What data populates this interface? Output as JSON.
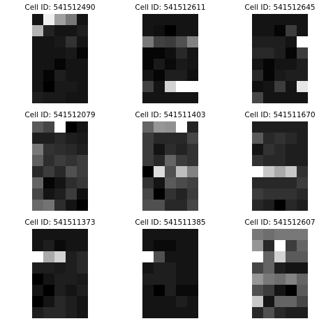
{
  "figure": {
    "background": "#ffffff",
    "colormap": "grayscale (0 = black, 255 = white)"
  },
  "panels": [
    {
      "title": "Cell ID: 541512490",
      "pixels": [
        [
          20,
          240,
          160,
          120,
          20
        ],
        [
          180,
          35,
          20,
          20,
          30
        ],
        [
          20,
          20,
          25,
          50,
          20
        ],
        [
          20,
          20,
          20,
          25,
          5
        ],
        [
          20,
          20,
          5,
          20,
          20
        ],
        [
          20,
          5,
          30,
          20,
          20
        ],
        [
          20,
          0,
          25,
          25,
          20
        ],
        [
          30,
          25,
          25,
          20,
          20
        ]
      ]
    },
    {
      "title": "Cell ID: 541512611",
      "pixels": [
        [
          20,
          20,
          20,
          20,
          20
        ],
        [
          20,
          15,
          0,
          20,
          20
        ],
        [
          120,
          65,
          60,
          80,
          130
        ],
        [
          5,
          5,
          15,
          40,
          20
        ],
        [
          5,
          25,
          10,
          25,
          20
        ],
        [
          20,
          5,
          30,
          30,
          15
        ],
        [
          65,
          20,
          210,
          255,
          255
        ],
        [
          20,
          20,
          20,
          20,
          20
        ]
      ]
    },
    {
      "title": "Cell ID: 541512645",
      "pixels": [
        [
          20,
          20,
          20,
          20,
          20
        ],
        [
          20,
          20,
          5,
          60,
          20
        ],
        [
          30,
          30,
          30,
          20,
          255
        ],
        [
          40,
          40,
          30,
          5,
          60
        ],
        [
          20,
          5,
          20,
          20,
          30
        ],
        [
          40,
          5,
          25,
          30,
          30
        ],
        [
          15,
          20,
          60,
          20,
          230
        ],
        [
          70,
          20,
          20,
          20,
          20
        ]
      ]
    },
    {
      "title": "Cell ID: 541512079",
      "pixels": [
        [
          90,
          70,
          255,
          0,
          20
        ],
        [
          30,
          30,
          40,
          30,
          25
        ],
        [
          120,
          50,
          45,
          40,
          30
        ],
        [
          95,
          45,
          60,
          50,
          60
        ],
        [
          40,
          60,
          40,
          80,
          60
        ],
        [
          100,
          5,
          20,
          45,
          55
        ],
        [
          70,
          20,
          30,
          60,
          15
        ],
        [
          105,
          115,
          45,
          20,
          0
        ]
      ]
    },
    {
      "title": "Cell ID: 541511403",
      "pixels": [
        [
          100,
          150,
          145,
          255,
          35
        ],
        [
          60,
          40,
          40,
          40,
          70
        ],
        [
          60,
          20,
          45,
          35,
          50
        ],
        [
          60,
          40,
          100,
          60,
          50
        ],
        [
          0,
          220,
          80,
          190,
          130
        ],
        [
          50,
          20,
          90,
          75,
          65
        ],
        [
          70,
          0,
          50,
          35,
          60
        ],
        [
          80,
          80,
          40,
          40,
          70
        ]
      ]
    },
    {
      "title": "Cell ID: 541511670",
      "pixels": [
        [
          30,
          30,
          30,
          30,
          30
        ],
        [
          90,
          40,
          50,
          40,
          30
        ],
        [
          20,
          50,
          40,
          30,
          30
        ],
        [
          50,
          40,
          40,
          30,
          30
        ],
        [
          255,
          200,
          170,
          200,
          50
        ],
        [
          40,
          40,
          40,
          40,
          60
        ],
        [
          60,
          50,
          50,
          50,
          40
        ],
        [
          40,
          30,
          0,
          40,
          30
        ]
      ]
    },
    {
      "title": "Cell ID: 541511373",
      "pixels": [
        [
          20,
          20,
          20,
          20,
          20
        ],
        [
          20,
          30,
          10,
          20,
          20
        ],
        [
          255,
          170,
          210,
          30,
          40
        ],
        [
          30,
          30,
          25,
          30,
          40
        ],
        [
          0,
          20,
          30,
          30,
          25
        ],
        [
          20,
          0,
          30,
          20,
          30
        ],
        [
          0,
          20,
          40,
          30,
          20
        ],
        [
          30,
          40,
          40,
          30,
          20
        ]
      ]
    },
    {
      "title": "Cell ID: 541511385",
      "pixels": [
        [
          20,
          20,
          20,
          20,
          20
        ],
        [
          20,
          10,
          10,
          20,
          20
        ],
        [
          255,
          80,
          20,
          20,
          20
        ],
        [
          20,
          30,
          30,
          20,
          20
        ],
        [
          30,
          30,
          30,
          20,
          20
        ],
        [
          20,
          0,
          30,
          10,
          10
        ],
        [
          20,
          20,
          20,
          30,
          20
        ],
        [
          20,
          20,
          20,
          20,
          20
        ]
      ]
    },
    {
      "title": "Cell ID: 541512607",
      "pixels": [
        [
          120,
          110,
          120,
          120,
          120
        ],
        [
          150,
          40,
          255,
          60,
          100
        ],
        [
          255,
          100,
          210,
          90,
          90
        ],
        [
          70,
          100,
          30,
          20,
          20
        ],
        [
          150,
          120,
          110,
          130,
          100
        ],
        [
          80,
          60,
          20,
          0,
          90
        ],
        [
          200,
          20,
          100,
          100,
          70
        ],
        [
          40,
          80,
          40,
          30,
          30
        ]
      ]
    }
  ]
}
